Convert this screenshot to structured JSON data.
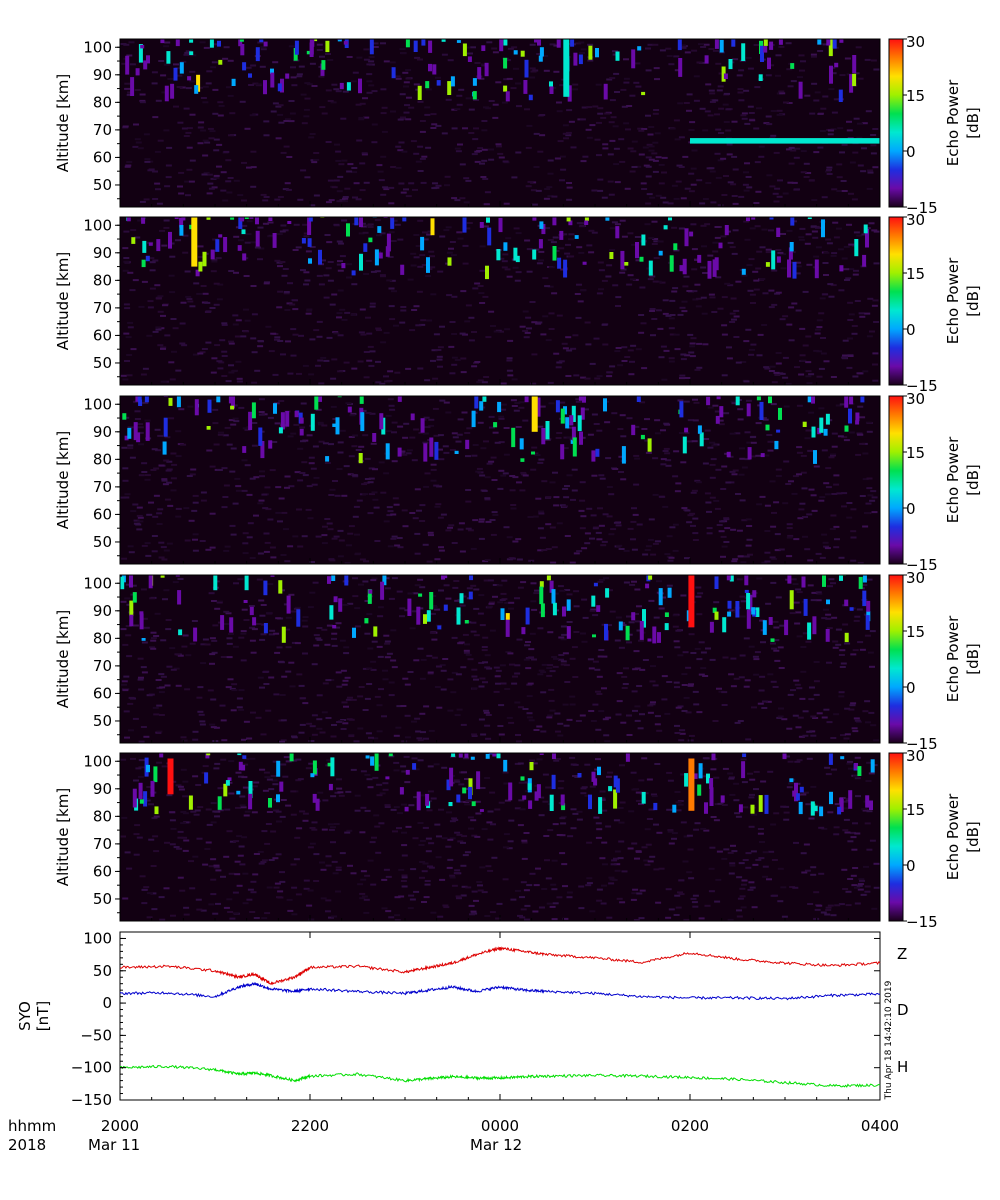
{
  "colors": {
    "Z": "#dd0000",
    "H": "#0000cc",
    "D": "#00dd00",
    "panel_background": "#120012"
  },
  "colorbar": {
    "label": "Echo Power",
    "unit": "[dB]",
    "min": -15,
    "max": 30,
    "ticks": [
      "30",
      "15",
      "0",
      "−15"
    ],
    "colormap": [
      "#1a001a",
      "#6a0aa8",
      "#1e2ee0",
      "#00a8ff",
      "#00e8d0",
      "#00e050",
      "#a0f000",
      "#ffe000",
      "#ff7a00",
      "#ff1010"
    ]
  },
  "panels": [
    {
      "ylabel": "Altitude [km]",
      "yticks": [
        "100",
        "90",
        "80",
        "70",
        "60",
        "50"
      ]
    },
    {
      "ylabel": "Altitude [km]",
      "yticks": [
        "100",
        "90",
        "80",
        "70",
        "60",
        "50"
      ]
    },
    {
      "ylabel": "Altitude [km]",
      "yticks": [
        "100",
        "90",
        "80",
        "70",
        "60",
        "50"
      ]
    },
    {
      "ylabel": "Altitude [km]",
      "yticks": [
        "100",
        "90",
        "80",
        "70",
        "60",
        "50"
      ]
    },
    {
      "ylabel": "Altitude [km]",
      "yticks": [
        "100",
        "90",
        "80",
        "70",
        "60",
        "50"
      ]
    }
  ],
  "mag": {
    "ylabel_line1": "SYO",
    "ylabel_line2": "[nT]",
    "yticks": [
      "100",
      "50",
      "0",
      "−50",
      "−100",
      "−150"
    ],
    "labels": {
      "Z": "Z",
      "D": "D",
      "H": "H"
    },
    "timestamp": "Thu Apr 18 14:42:10 2019"
  },
  "xaxis": {
    "unit_label": "hhmm",
    "year": "2018",
    "ticks": [
      "2000",
      "2200",
      "0000",
      "0200",
      "0400"
    ],
    "dates": [
      "Mar 11",
      "Mar 12"
    ]
  },
  "chart_data": [
    {
      "type": "heatmap",
      "title": "",
      "xlabel": "",
      "ylabel": "Altitude [km]",
      "xlim": [
        "2018-03-11 20:00",
        "2018-03-12 04:00"
      ],
      "ylim": [
        42,
        103
      ],
      "zlabel": "Echo Power [dB]",
      "zlim": [
        -15,
        30
      ],
      "echo_layer_km": [
        80,
        103
      ],
      "features": [
        {
          "time": "2018-03-12 02:00",
          "altitude_km": [
            65,
            67
          ],
          "value_db": 5,
          "note": "horizontal echo layer"
        },
        {
          "time": "2018-03-12 00:40",
          "altitude_km": [
            82,
            103
          ],
          "value_db": 5
        }
      ],
      "background_db": -12
    },
    {
      "type": "heatmap",
      "ylabel": "Altitude [km]",
      "xlim": [
        "2018-03-11 20:00",
        "2018-03-12 04:00"
      ],
      "ylim": [
        42,
        103
      ],
      "zlim": [
        -15,
        30
      ],
      "echo_layer_km": [
        80,
        103
      ],
      "features": [
        {
          "time": "2018-03-11 20:45",
          "altitude_km": [
            85,
            103
          ],
          "value_db": 20
        }
      ],
      "background_db": -12
    },
    {
      "type": "heatmap",
      "ylabel": "Altitude [km]",
      "xlim": [
        "2018-03-11 20:00",
        "2018-03-12 04:00"
      ],
      "ylim": [
        42,
        103
      ],
      "zlim": [
        -15,
        30
      ],
      "echo_layer_km": [
        78,
        103
      ],
      "features": [
        {
          "time": "2018-03-12 00:20",
          "altitude_km": [
            90,
            103
          ],
          "value_db": 20
        }
      ],
      "background_db": -12
    },
    {
      "type": "heatmap",
      "ylabel": "Altitude [km]",
      "xlim": [
        "2018-03-11 20:00",
        "2018-03-12 04:00"
      ],
      "ylim": [
        42,
        103
      ],
      "zlim": [
        -15,
        30
      ],
      "echo_layer_km": [
        78,
        103
      ],
      "features": [
        {
          "time": "2018-03-12 01:59",
          "altitude_km": [
            84,
            103
          ],
          "value_db": 28
        }
      ],
      "background_db": -12
    },
    {
      "type": "heatmap",
      "ylabel": "Altitude [km]",
      "xlim": [
        "2018-03-11 20:00",
        "2018-03-12 04:00"
      ],
      "ylim": [
        42,
        103
      ],
      "zlim": [
        -15,
        30
      ],
      "echo_layer_km": [
        80,
        103
      ],
      "features": [
        {
          "time": "2018-03-11 20:30",
          "altitude_km": [
            88,
            101
          ],
          "value_db": 28
        },
        {
          "time": "2018-03-12 01:59",
          "altitude_km": [
            82,
            101
          ],
          "value_db": 25
        }
      ],
      "background_db": -12
    },
    {
      "type": "line",
      "ylabel": "SYO [nT]",
      "xlim": [
        "2018-03-11 20:00",
        "2018-03-12 04:00"
      ],
      "ylim": [
        -150,
        110
      ],
      "x": [
        "20:00",
        "20:30",
        "21:00",
        "21:15",
        "21:25",
        "21:35",
        "21:50",
        "22:00",
        "22:30",
        "23:00",
        "23:15",
        "23:30",
        "23:45",
        "00:00",
        "00:15",
        "00:30",
        "01:00",
        "01:30",
        "02:00",
        "02:30",
        "03:00",
        "03:30",
        "04:00"
      ],
      "series": [
        {
          "name": "Z",
          "values": [
            55,
            57,
            50,
            40,
            45,
            30,
            40,
            55,
            57,
            48,
            55,
            62,
            75,
            85,
            80,
            75,
            70,
            63,
            78,
            68,
            62,
            58,
            62
          ]
        },
        {
          "name": "H",
          "values": [
            15,
            16,
            10,
            25,
            30,
            22,
            18,
            22,
            18,
            15,
            20,
            25,
            18,
            25,
            20,
            18,
            15,
            10,
            8,
            8,
            7,
            12,
            14
          ]
        },
        {
          "name": "D",
          "values": [
            -100,
            -98,
            -103,
            -110,
            -108,
            -112,
            -120,
            -113,
            -110,
            -120,
            -117,
            -114,
            -116,
            -116,
            -114,
            -113,
            -112,
            -113,
            -115,
            -118,
            -123,
            -128,
            -127
          ]
        }
      ]
    }
  ]
}
